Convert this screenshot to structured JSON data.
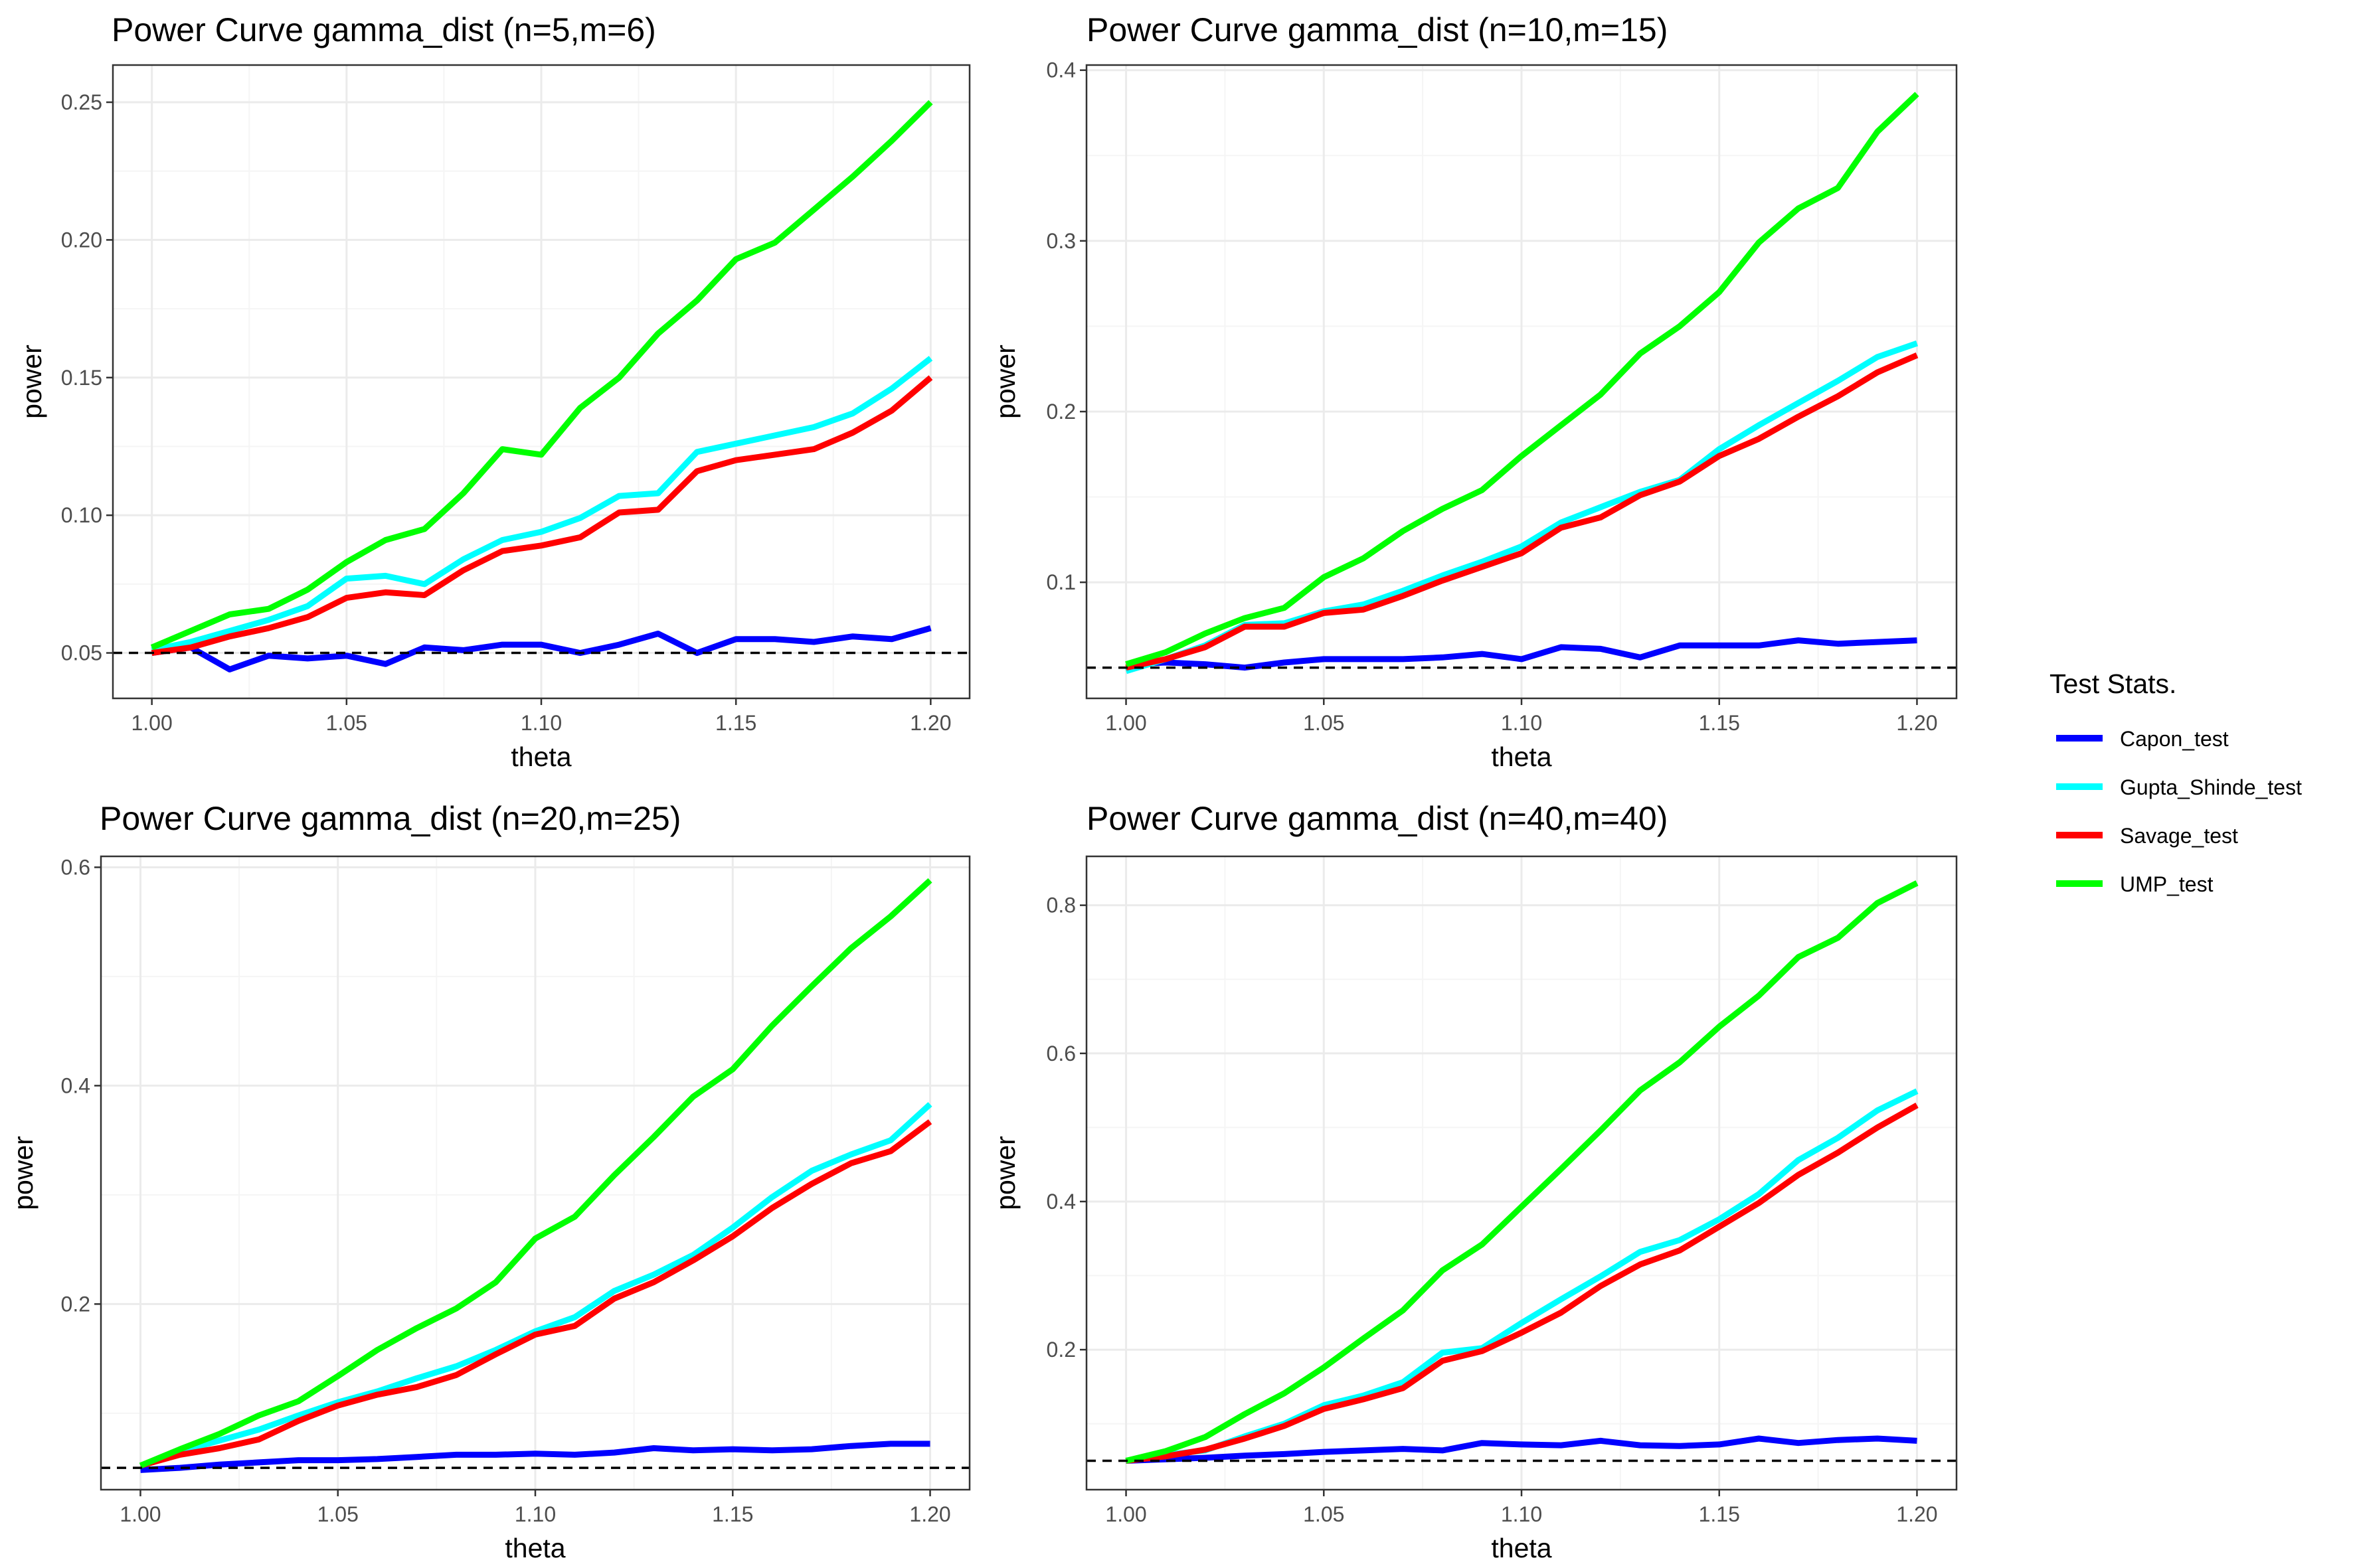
{
  "chart_data": [
    {
      "type": "line",
      "title": "Power Curve gamma_dist (n=5,m=6)",
      "xlabel": "theta",
      "ylabel": "power",
      "xlim": [
        0.99,
        1.21
      ],
      "ylim": [
        0.0335,
        0.2635
      ],
      "xticks": [
        1.0,
        1.05,
        1.1,
        1.15,
        1.2
      ],
      "xtick_labels": [
        "1.00",
        "1.05",
        "1.10",
        "1.15",
        "1.20"
      ],
      "yticks": [
        0.05,
        0.1,
        0.15,
        0.2,
        0.25
      ],
      "ytick_labels": [
        "0.05",
        "0.10",
        "0.15",
        "0.20",
        "0.25"
      ],
      "hline": 0.05,
      "x": [
        1.0,
        1.01,
        1.02,
        1.03,
        1.04,
        1.05,
        1.06,
        1.07,
        1.08,
        1.09,
        1.1,
        1.11,
        1.12,
        1.13,
        1.14,
        1.15,
        1.16,
        1.17,
        1.18,
        1.19,
        1.2
      ],
      "series": [
        {
          "name": "Capon_test",
          "values": [
            0.05,
            0.052,
            0.044,
            0.049,
            0.048,
            0.049,
            0.046,
            0.052,
            0.051,
            0.053,
            0.053,
            0.05,
            0.053,
            0.057,
            0.05,
            0.055,
            0.055,
            0.054,
            0.056,
            0.055,
            0.059
          ]
        },
        {
          "name": "Gupta_Shinde_test",
          "values": [
            0.051,
            0.054,
            0.058,
            0.062,
            0.067,
            0.077,
            0.078,
            0.075,
            0.084,
            0.091,
            0.094,
            0.099,
            0.107,
            0.108,
            0.123,
            0.126,
            0.129,
            0.132,
            0.137,
            0.146,
            0.157
          ]
        },
        {
          "name": "Savage_test",
          "values": [
            0.05,
            0.052,
            0.056,
            0.059,
            0.063,
            0.07,
            0.072,
            0.071,
            0.08,
            0.087,
            0.089,
            0.092,
            0.101,
            0.102,
            0.116,
            0.12,
            0.122,
            0.124,
            0.13,
            0.138,
            0.15
          ]
        },
        {
          "name": "UMP_test",
          "values": [
            0.052,
            0.058,
            0.064,
            0.066,
            0.073,
            0.083,
            0.091,
            0.095,
            0.108,
            0.124,
            0.122,
            0.139,
            0.15,
            0.166,
            0.178,
            0.193,
            0.199,
            0.211,
            0.223,
            0.236,
            0.25
          ]
        }
      ]
    },
    {
      "type": "line",
      "title": "Power Curve gamma_dist (n=10,m=15)",
      "xlabel": "theta",
      "ylabel": "power",
      "xlim": [
        0.99,
        1.21
      ],
      "ylim": [
        0.032,
        0.403
      ],
      "xticks": [
        1.0,
        1.05,
        1.1,
        1.15,
        1.2
      ],
      "xtick_labels": [
        "1.00",
        "1.05",
        "1.10",
        "1.15",
        "1.20"
      ],
      "yticks": [
        0.1,
        0.2,
        0.3,
        0.4
      ],
      "ytick_labels": [
        "0.1",
        "0.2",
        "0.3",
        "0.4"
      ],
      "hline": 0.05,
      "x": [
        1.0,
        1.01,
        1.02,
        1.03,
        1.04,
        1.05,
        1.06,
        1.07,
        1.08,
        1.09,
        1.1,
        1.11,
        1.12,
        1.13,
        1.14,
        1.15,
        1.16,
        1.17,
        1.18,
        1.19,
        1.2
      ],
      "series": [
        {
          "name": "Capon_test",
          "values": [
            0.052,
            0.053,
            0.052,
            0.05,
            0.053,
            0.055,
            0.055,
            0.055,
            0.056,
            0.058,
            0.055,
            0.062,
            0.061,
            0.056,
            0.063,
            0.063,
            0.063,
            0.066,
            0.064,
            0.065,
            0.066
          ]
        },
        {
          "name": "Gupta_Shinde_test",
          "values": [
            0.048,
            0.055,
            0.063,
            0.075,
            0.076,
            0.083,
            0.087,
            0.095,
            0.104,
            0.112,
            0.121,
            0.135,
            0.144,
            0.153,
            0.16,
            0.178,
            0.192,
            0.205,
            0.218,
            0.232,
            0.24
          ]
        },
        {
          "name": "Savage_test",
          "values": [
            0.05,
            0.055,
            0.062,
            0.074,
            0.074,
            0.082,
            0.084,
            0.092,
            0.101,
            0.109,
            0.117,
            0.132,
            0.138,
            0.151,
            0.159,
            0.174,
            0.184,
            0.197,
            0.209,
            0.223,
            0.233
          ]
        },
        {
          "name": "UMP_test",
          "values": [
            0.052,
            0.059,
            0.07,
            0.079,
            0.085,
            0.103,
            0.114,
            0.13,
            0.143,
            0.154,
            0.174,
            0.192,
            0.21,
            0.234,
            0.25,
            0.27,
            0.299,
            0.319,
            0.331,
            0.364,
            0.386
          ]
        }
      ]
    },
    {
      "type": "line",
      "title": "Power Curve gamma_dist (n=20,m=25)",
      "xlabel": "theta",
      "ylabel": "power",
      "xlim": [
        0.99,
        1.21
      ],
      "ylim": [
        0.03,
        0.61
      ],
      "xticks": [
        1.0,
        1.05,
        1.1,
        1.15,
        1.2
      ],
      "xtick_labels": [
        "1.00",
        "1.05",
        "1.10",
        "1.15",
        "1.20"
      ],
      "yticks": [
        0.2,
        0.4,
        0.6
      ],
      "ytick_labels": [
        "0.2",
        "0.4",
        "0.6"
      ],
      "hline": 0.05,
      "x": [
        1.0,
        1.01,
        1.02,
        1.03,
        1.04,
        1.05,
        1.06,
        1.07,
        1.08,
        1.09,
        1.1,
        1.11,
        1.12,
        1.13,
        1.14,
        1.15,
        1.16,
        1.17,
        1.18,
        1.19,
        1.2
      ],
      "series": [
        {
          "name": "Capon_test",
          "values": [
            0.048,
            0.05,
            0.053,
            0.055,
            0.057,
            0.057,
            0.058,
            0.06,
            0.062,
            0.062,
            0.063,
            0.062,
            0.064,
            0.068,
            0.066,
            0.067,
            0.066,
            0.067,
            0.07,
            0.072,
            0.072
          ]
        },
        {
          "name": "Gupta_Shinde_test",
          "values": [
            0.052,
            0.065,
            0.075,
            0.085,
            0.098,
            0.11,
            0.12,
            0.132,
            0.143,
            0.158,
            0.175,
            0.188,
            0.212,
            0.227,
            0.245,
            0.27,
            0.298,
            0.322,
            0.337,
            0.35,
            0.383
          ]
        },
        {
          "name": "Savage_test",
          "values": [
            0.052,
            0.062,
            0.068,
            0.076,
            0.093,
            0.107,
            0.117,
            0.124,
            0.135,
            0.154,
            0.172,
            0.18,
            0.205,
            0.22,
            0.24,
            0.262,
            0.288,
            0.31,
            0.329,
            0.34,
            0.367
          ]
        },
        {
          "name": "UMP_test",
          "values": [
            0.052,
            0.067,
            0.081,
            0.098,
            0.111,
            0.134,
            0.158,
            0.178,
            0.196,
            0.22,
            0.26,
            0.28,
            0.318,
            0.353,
            0.39,
            0.415,
            0.455,
            0.491,
            0.526,
            0.555,
            0.588
          ]
        }
      ]
    },
    {
      "type": "line",
      "title": "Power Curve gamma_dist (n=40,m=40)",
      "xlabel": "theta",
      "ylabel": "power",
      "xlim": [
        0.99,
        1.21
      ],
      "ylim": [
        0.011,
        0.866
      ],
      "xticks": [
        1.0,
        1.05,
        1.1,
        1.15,
        1.2
      ],
      "xtick_labels": [
        "1.00",
        "1.05",
        "1.10",
        "1.15",
        "1.20"
      ],
      "yticks": [
        0.2,
        0.4,
        0.6,
        0.8
      ],
      "ytick_labels": [
        "0.2",
        "0.4",
        "0.6",
        "0.8"
      ],
      "hline": 0.05,
      "x": [
        1.0,
        1.01,
        1.02,
        1.03,
        1.04,
        1.05,
        1.06,
        1.07,
        1.08,
        1.09,
        1.1,
        1.11,
        1.12,
        1.13,
        1.14,
        1.15,
        1.16,
        1.17,
        1.18,
        1.19,
        1.2
      ],
      "series": [
        {
          "name": "Capon_test",
          "values": [
            0.05,
            0.052,
            0.054,
            0.057,
            0.059,
            0.062,
            0.064,
            0.066,
            0.064,
            0.074,
            0.072,
            0.071,
            0.077,
            0.071,
            0.07,
            0.072,
            0.08,
            0.074,
            0.078,
            0.08,
            0.077
          ]
        },
        {
          "name": "Gupta_Shinde_test",
          "values": [
            0.05,
            0.058,
            0.064,
            0.083,
            0.1,
            0.125,
            0.138,
            0.156,
            0.196,
            0.202,
            0.236,
            0.268,
            0.299,
            0.332,
            0.348,
            0.376,
            0.41,
            0.456,
            0.486,
            0.523,
            0.549
          ]
        },
        {
          "name": "Savage_test",
          "values": [
            0.05,
            0.056,
            0.065,
            0.08,
            0.097,
            0.12,
            0.133,
            0.148,
            0.185,
            0.198,
            0.223,
            0.25,
            0.286,
            0.315,
            0.334,
            0.366,
            0.398,
            0.436,
            0.466,
            0.5,
            0.53
          ]
        },
        {
          "name": "UMP_test",
          "values": [
            0.05,
            0.063,
            0.082,
            0.113,
            0.141,
            0.176,
            0.215,
            0.253,
            0.307,
            0.342,
            0.393,
            0.444,
            0.496,
            0.55,
            0.588,
            0.636,
            0.678,
            0.73,
            0.756,
            0.803,
            0.83
          ]
        }
      ]
    }
  ],
  "legend": {
    "title": "Test Stats.",
    "items": [
      {
        "label": "Capon_test",
        "color": "#0000FF"
      },
      {
        "label": "Gupta_Shinde_test",
        "color": "#00FFFF"
      },
      {
        "label": "Savage_test",
        "color": "#FF0000"
      },
      {
        "label": "UMP_test",
        "color": "#00FF00"
      }
    ]
  },
  "colors": {
    "Capon_test": "#0000FF",
    "Gupta_Shinde_test": "#00FFFF",
    "Savage_test": "#FF0000",
    "UMP_test": "#00FF00",
    "grid_major": "#EBEBEB",
    "grid_minor": "#F5F5F5",
    "panel_border": "#333333",
    "reference_line": "#000000"
  }
}
